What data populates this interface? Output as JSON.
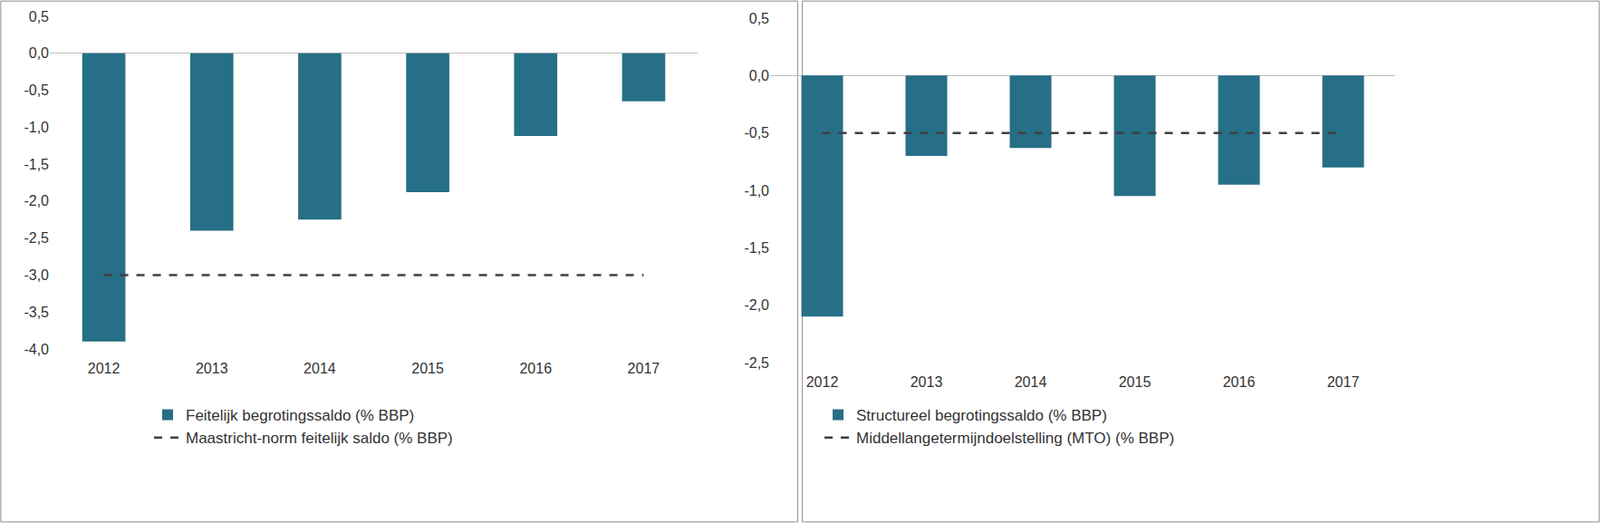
{
  "chart_data": [
    {
      "type": "bar",
      "categories": [
        "2012",
        "2013",
        "2014",
        "2015",
        "2016",
        "2017"
      ],
      "series": [
        {
          "name": "Feitelijk begrotingssaldo (% BBP)",
          "type": "bar",
          "color": "#266f86",
          "values": [
            -3.9,
            -2.4,
            -2.25,
            -1.88,
            -1.12,
            -0.65
          ]
        },
        {
          "name": "Maastricht-norm feitelijk saldo (% BBP)",
          "type": "line",
          "line_style": "dashed",
          "color": "#404040",
          "values": [
            -3.0,
            -3.0,
            -3.0,
            -3.0,
            -3.0,
            -3.0
          ]
        }
      ],
      "ylim": [
        -4.0,
        0.5
      ],
      "yticks": [
        {
          "value": -4.0,
          "label": "-4,0"
        },
        {
          "value": -3.5,
          "label": "-3,5"
        },
        {
          "value": -3.0,
          "label": "-3,0"
        },
        {
          "value": -2.5,
          "label": "-2,5"
        },
        {
          "value": -2.0,
          "label": "-2,0"
        },
        {
          "value": -1.5,
          "label": "-1,5"
        },
        {
          "value": -1.0,
          "label": "-1,0"
        },
        {
          "value": -0.5,
          "label": "-0,5"
        },
        {
          "value": 0.0,
          "label": "0,0"
        },
        {
          "value": 0.5,
          "label": "0,5"
        }
      ],
      "grid": false,
      "legend": "bottom"
    },
    {
      "type": "bar",
      "categories": [
        "2012",
        "2013",
        "2014",
        "2015",
        "2016",
        "2017"
      ],
      "series": [
        {
          "name": "Structureel begrotingssaldo (% BBP)",
          "type": "bar",
          "color": "#266f86",
          "values": [
            -2.1,
            -0.7,
            -0.63,
            -1.05,
            -0.95,
            -0.8
          ]
        },
        {
          "name": "Middellangetermijndoelstelling (MTO) (% BBP)",
          "type": "line",
          "line_style": "dashed",
          "color": "#404040",
          "values": [
            -0.5,
            -0.5,
            -0.5,
            -0.5,
            -0.5,
            -0.5
          ]
        }
      ],
      "ylim": [
        -2.5,
        0.5
      ],
      "yticks": [
        {
          "value": -2.5,
          "label": "-2,5"
        },
        {
          "value": -2.0,
          "label": "-2,0"
        },
        {
          "value": -1.5,
          "label": "-1,5"
        },
        {
          "value": -1.0,
          "label": "-1,0"
        },
        {
          "value": -0.5,
          "label": "-0,5"
        },
        {
          "value": 0.0,
          "label": "0,0"
        },
        {
          "value": 0.5,
          "label": "0,5"
        }
      ],
      "grid": false,
      "legend": "bottom"
    }
  ]
}
